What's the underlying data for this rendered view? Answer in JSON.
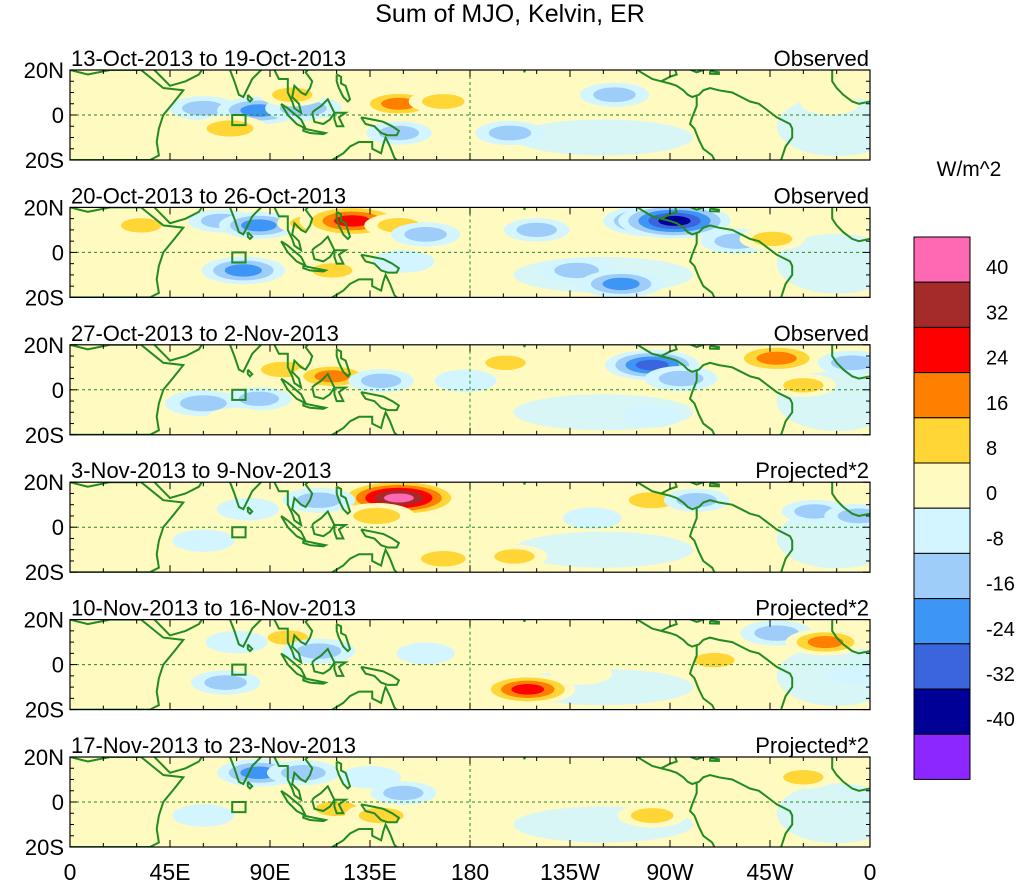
{
  "chart_data": {
    "type": "heatmap",
    "title": "Sum of MJO, Kelvin, ER",
    "units": "W/m^2",
    "x_ticks": [
      "0",
      "45E",
      "90E",
      "135E",
      "180",
      "135W",
      "90W",
      "45W",
      "0"
    ],
    "y_ticks": [
      "20N",
      "0",
      "20S"
    ],
    "x_range": [
      0,
      360
    ],
    "y_range": [
      -20,
      20
    ],
    "colorbar": {
      "levels": [
        -40,
        -32,
        -24,
        -16,
        -8,
        0,
        8,
        16,
        24,
        32,
        40
      ],
      "labels": [
        "40",
        "32",
        "24",
        "16",
        "8",
        "0",
        "-8",
        "-16",
        "-24",
        "-32",
        "-40"
      ],
      "colors_top_to_bottom": [
        "#ff69b4",
        "#a52a2a",
        "#ff0000",
        "#ff7f00",
        "#ffd635",
        "#fffac0",
        "#d2f5ff",
        "#9fcdfa",
        "#3d95f5",
        "#3a65dc",
        "#000096",
        "#8c28ff"
      ]
    },
    "panels": [
      {
        "date_range": "13-Oct-2013 to 19-Oct-2013",
        "label": "Observed",
        "anomalies": [
          {
            "lon": 50,
            "lat": 11,
            "value": 10
          },
          {
            "lon": 60,
            "lat": 3,
            "value": -14
          },
          {
            "lon": 85,
            "lat": 2,
            "value": -22
          },
          {
            "lon": 105,
            "lat": 3,
            "value": -18
          },
          {
            "lon": 100,
            "lat": 9,
            "value": 12
          },
          {
            "lon": 148,
            "lat": 5,
            "value": 20
          },
          {
            "lon": 168,
            "lat": 6,
            "value": 14
          },
          {
            "lon": 72,
            "lat": -6,
            "value": 18
          },
          {
            "lon": 118,
            "lat": -6,
            "value": 10
          },
          {
            "lon": 148,
            "lat": -8,
            "value": -12
          },
          {
            "lon": 198,
            "lat": -8,
            "value": -14
          },
          {
            "lon": 215,
            "lat": 6,
            "value": 8
          },
          {
            "lon": 245,
            "lat": 9,
            "value": -14
          },
          {
            "lon": 280,
            "lat": 6,
            "value": 10
          },
          {
            "lon": 300,
            "lat": -12,
            "value": 10
          },
          {
            "lon": 342,
            "lat": 5,
            "value": 8
          }
        ]
      },
      {
        "date_range": "20-Oct-2013 to 26-Oct-2013",
        "label": "Observed",
        "anomalies": [
          {
            "lon": 32,
            "lat": 12,
            "value": 12
          },
          {
            "lon": 68,
            "lat": 14,
            "value": -12
          },
          {
            "lon": 85,
            "lat": 12,
            "value": -20
          },
          {
            "lon": 108,
            "lat": 13,
            "value": 12
          },
          {
            "lon": 127,
            "lat": 14,
            "value": 34
          },
          {
            "lon": 148,
            "lat": 12,
            "value": 14
          },
          {
            "lon": 160,
            "lat": 8,
            "value": -14
          },
          {
            "lon": 78,
            "lat": -8,
            "value": -22
          },
          {
            "lon": 118,
            "lat": -8,
            "value": 12
          },
          {
            "lon": 150,
            "lat": -4,
            "value": -10
          },
          {
            "lon": 210,
            "lat": 10,
            "value": -12
          },
          {
            "lon": 228,
            "lat": -8,
            "value": -16
          },
          {
            "lon": 248,
            "lat": -14,
            "value": -22
          },
          {
            "lon": 262,
            "lat": 14,
            "value": -30
          },
          {
            "lon": 272,
            "lat": 14,
            "value": -38
          },
          {
            "lon": 300,
            "lat": 5,
            "value": -16
          },
          {
            "lon": 316,
            "lat": 6,
            "value": 12
          },
          {
            "lon": 352,
            "lat": 14,
            "value": 10
          }
        ]
      },
      {
        "date_range": "27-Oct-2013 to 2-Nov-2013",
        "label": "Observed",
        "anomalies": [
          {
            "lon": 96,
            "lat": 9,
            "value": 16
          },
          {
            "lon": 118,
            "lat": 6,
            "value": 20
          },
          {
            "lon": 60,
            "lat": -6,
            "value": -18
          },
          {
            "lon": 85,
            "lat": -4,
            "value": -12
          },
          {
            "lon": 140,
            "lat": 4,
            "value": -12
          },
          {
            "lon": 178,
            "lat": 4,
            "value": -10
          },
          {
            "lon": 196,
            "lat": 12,
            "value": 12
          },
          {
            "lon": 262,
            "lat": 11,
            "value": -28
          },
          {
            "lon": 275,
            "lat": 5,
            "value": -16
          },
          {
            "lon": 318,
            "lat": 14,
            "value": 26
          },
          {
            "lon": 352,
            "lat": 12,
            "value": -14
          },
          {
            "lon": 330,
            "lat": 2,
            "value": 12
          },
          {
            "lon": 30,
            "lat": 13,
            "value": 8
          },
          {
            "lon": 75,
            "lat": -13,
            "value": 10
          },
          {
            "lon": 262,
            "lat": -12,
            "value": -8
          }
        ]
      },
      {
        "date_range": "3-Nov-2013 to 9-Nov-2013",
        "label": "Projected*2",
        "anomalies": [
          {
            "lon": 148,
            "lat": 13,
            "value": 44
          },
          {
            "lon": 138,
            "lat": 5,
            "value": 18
          },
          {
            "lon": 112,
            "lat": 12,
            "value": -16
          },
          {
            "lon": 80,
            "lat": 8,
            "value": -10
          },
          {
            "lon": 168,
            "lat": -14,
            "value": 16
          },
          {
            "lon": 200,
            "lat": -13,
            "value": 12
          },
          {
            "lon": 262,
            "lat": 12,
            "value": 18
          },
          {
            "lon": 282,
            "lat": 12,
            "value": -12
          },
          {
            "lon": 335,
            "lat": 7,
            "value": -12
          },
          {
            "lon": 355,
            "lat": 5,
            "value": -14
          },
          {
            "lon": 20,
            "lat": 6,
            "value": 8
          },
          {
            "lon": 60,
            "lat": -6,
            "value": -10
          },
          {
            "lon": 100,
            "lat": -6,
            "value": 10
          },
          {
            "lon": 235,
            "lat": 4,
            "value": -8
          }
        ]
      },
      {
        "date_range": "10-Nov-2013 to 16-Nov-2013",
        "label": "Projected*2",
        "anomalies": [
          {
            "lon": 98,
            "lat": 12,
            "value": 12
          },
          {
            "lon": 75,
            "lat": 10,
            "value": -10
          },
          {
            "lon": 112,
            "lat": 6,
            "value": -16
          },
          {
            "lon": 70,
            "lat": -8,
            "value": -14
          },
          {
            "lon": 108,
            "lat": -5,
            "value": 10
          },
          {
            "lon": 190,
            "lat": -12,
            "value": 10
          },
          {
            "lon": 206,
            "lat": -11,
            "value": 28
          },
          {
            "lon": 230,
            "lat": -4,
            "value": 10
          },
          {
            "lon": 252,
            "lat": 6,
            "value": 8
          },
          {
            "lon": 318,
            "lat": 14,
            "value": -16
          },
          {
            "lon": 340,
            "lat": 10,
            "value": 20
          },
          {
            "lon": 290,
            "lat": 2,
            "value": 12
          },
          {
            "lon": 355,
            "lat": -4,
            "value": -10
          },
          {
            "lon": 40,
            "lat": 5,
            "value": 8
          },
          {
            "lon": 160,
            "lat": 5,
            "value": -8
          }
        ]
      },
      {
        "date_range": "17-Nov-2013 to 23-Nov-2013",
        "label": "Projected*2",
        "anomalies": [
          {
            "lon": 85,
            "lat": 13,
            "value": -22
          },
          {
            "lon": 105,
            "lat": 13,
            "value": -16
          },
          {
            "lon": 135,
            "lat": 11,
            "value": -10
          },
          {
            "lon": 150,
            "lat": 4,
            "value": -12
          },
          {
            "lon": 120,
            "lat": -3,
            "value": 14
          },
          {
            "lon": 140,
            "lat": -6,
            "value": 16
          },
          {
            "lon": 200,
            "lat": 4,
            "value": 8
          },
          {
            "lon": 262,
            "lat": -6,
            "value": 14
          },
          {
            "lon": 265,
            "lat": 12,
            "value": 10
          },
          {
            "lon": 330,
            "lat": 11,
            "value": 12
          },
          {
            "lon": 350,
            "lat": 15,
            "value": 10
          },
          {
            "lon": 60,
            "lat": -6,
            "value": -10
          },
          {
            "lon": 30,
            "lat": 4,
            "value": 8
          },
          {
            "lon": 230,
            "lat": 14,
            "value": 8
          }
        ]
      }
    ]
  }
}
